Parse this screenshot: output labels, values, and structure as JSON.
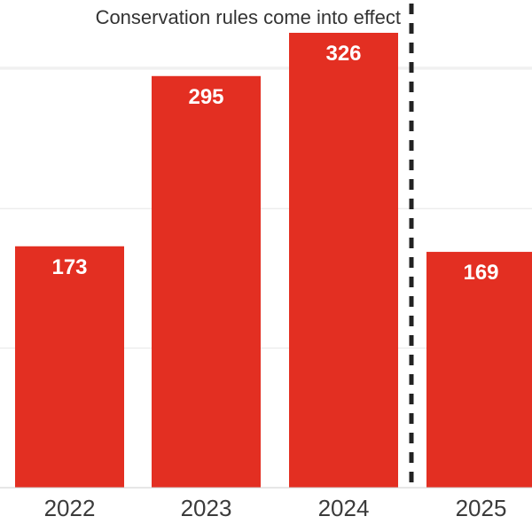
{
  "chart_data": {
    "type": "bar",
    "categories": [
      "2022",
      "2023",
      "2024",
      "2025"
    ],
    "values": [
      173,
      295,
      326,
      169
    ],
    "value_labels": [
      "173",
      "295",
      "326",
      "169"
    ],
    "annotation": "Conservation rules come into effect",
    "grid": true,
    "colors": {
      "bar": "#e32f22",
      "grid": "#e6e6e6",
      "marker": "#222222"
    }
  }
}
